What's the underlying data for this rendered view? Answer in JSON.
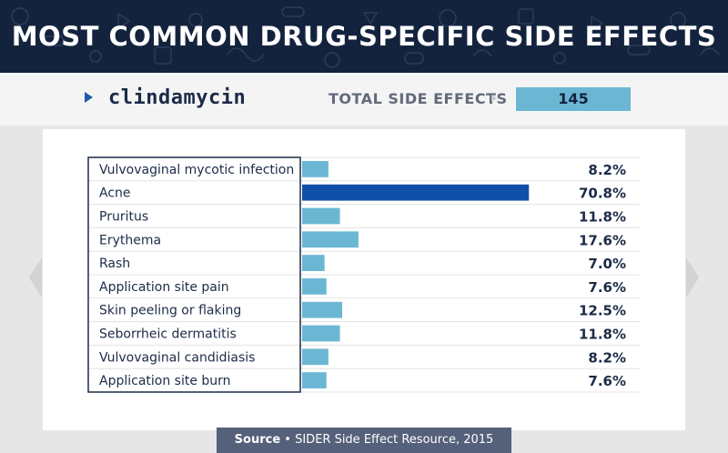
{
  "header": {
    "title": "MOST COMMON DRUG-SPECIFIC SIDE EFFECTS"
  },
  "subheader": {
    "drug_name": "clindamycin",
    "total_label": "TOTAL SIDE EFFECTS",
    "total_value": "145"
  },
  "colors": {
    "header_bg": "#14233d",
    "bar_default": "#6bb7d3",
    "bar_highlight": "#0f4fa8",
    "accent_marker": "#1f5ca8",
    "total_box": "#6bb7d3",
    "source_bg": "#55607a"
  },
  "chart_data": {
    "type": "bar",
    "orientation": "horizontal",
    "categories": [
      "Vulvovaginal mycotic infection",
      "Acne",
      "Pruritus",
      "Erythema",
      "Rash",
      "Application site pain",
      "Skin peeling or flaking",
      "Seborrheic dermatitis",
      "Vulvovaginal candidiasis",
      "Application site burn"
    ],
    "values": [
      8.2,
      70.8,
      11.8,
      17.6,
      7.0,
      7.6,
      12.5,
      11.8,
      8.2,
      7.6
    ],
    "value_labels": [
      "8.2%",
      "70.8%",
      "11.8%",
      "17.6%",
      "7.0%",
      "7.6%",
      "12.5%",
      "11.8%",
      "8.2%",
      "7.6%"
    ],
    "highlight_index": 1,
    "xlim": [
      0,
      100
    ],
    "grid": false
  },
  "source": {
    "label": "Source",
    "separator": "•",
    "text": "SIDER Side Effect Resource, 2015"
  }
}
